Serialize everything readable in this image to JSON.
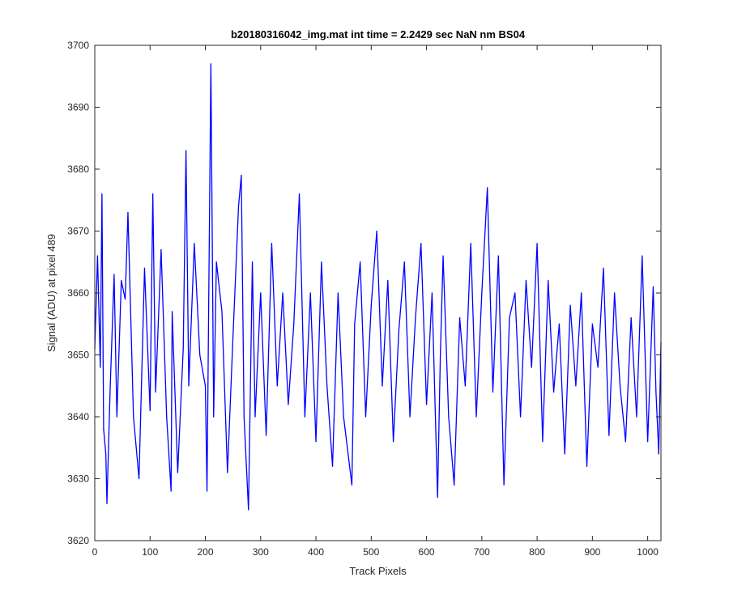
{
  "chart_data": {
    "type": "line",
    "title": "b20180316042_img.mat int time = 2.2429 sec  NaN nm BS04",
    "xlabel": "Track Pixels",
    "ylabel": "Signal (ADU) at pixel 489",
    "xlim": [
      0,
      1024
    ],
    "ylim": [
      3620,
      3700
    ],
    "xticks": [
      0,
      100,
      200,
      300,
      400,
      500,
      600,
      700,
      800,
      900,
      1000
    ],
    "yticks": [
      3620,
      3630,
      3640,
      3650,
      3660,
      3670,
      3680,
      3690,
      3700
    ],
    "xtick_labels": [
      "0",
      "100",
      "200",
      "300",
      "400",
      "500",
      "600",
      "700",
      "800",
      "900",
      "1000"
    ],
    "ytick_labels": [
      "3620",
      "3630",
      "3640",
      "3650",
      "3660",
      "3670",
      "3680",
      "3690",
      "3700"
    ],
    "grid": false,
    "line_color": "#0000ff",
    "series": [
      {
        "x": [
          0,
          5,
          10,
          13,
          16,
          20,
          22,
          28,
          35,
          40,
          48,
          55,
          60,
          70,
          80,
          90,
          100,
          105,
          110,
          120,
          130,
          138,
          140,
          150,
          160,
          165,
          170,
          180,
          190,
          200,
          203,
          210,
          215,
          220,
          230,
          240,
          250,
          260,
          265,
          270,
          278,
          285,
          290,
          300,
          310,
          320,
          330,
          340,
          350,
          360,
          370,
          380,
          390,
          400,
          410,
          420,
          430,
          440,
          450,
          465,
          470,
          480,
          490,
          500,
          510,
          520,
          530,
          540,
          550,
          560,
          570,
          580,
          590,
          600,
          610,
          620,
          625,
          630,
          640,
          650,
          660,
          670,
          680,
          690,
          700,
          710,
          720,
          730,
          740,
          750,
          760,
          770,
          780,
          790,
          800,
          810,
          820,
          830,
          840,
          850,
          860,
          870,
          880,
          890,
          900,
          910,
          920,
          930,
          940,
          950,
          960,
          970,
          980,
          990,
          1000,
          1010,
          1015,
          1020,
          1024
        ],
        "y": [
          3651,
          3666,
          3648,
          3676,
          3638,
          3634,
          3626,
          3645,
          3663,
          3640,
          3662,
          3659,
          3673,
          3640,
          3630,
          3664,
          3641,
          3676,
          3644,
          3667,
          3640,
          3628,
          3657,
          3631,
          3651,
          3683,
          3645,
          3668,
          3650,
          3645,
          3628,
          3697,
          3640,
          3665,
          3657,
          3631,
          3653,
          3674,
          3679,
          3640,
          3625,
          3665,
          3640,
          3660,
          3637,
          3668,
          3645,
          3660,
          3642,
          3655,
          3676,
          3640,
          3660,
          3636,
          3665,
          3645,
          3632,
          3660,
          3640,
          3629,
          3655,
          3665,
          3640,
          3658,
          3670,
          3645,
          3662,
          3636,
          3654,
          3665,
          3640,
          3656,
          3668,
          3642,
          3660,
          3627,
          3650,
          3666,
          3640,
          3629,
          3656,
          3645,
          3668,
          3640,
          3660,
          3677,
          3644,
          3666,
          3629,
          3656,
          3660,
          3640,
          3662,
          3648,
          3668,
          3636,
          3662,
          3644,
          3655,
          3634,
          3658,
          3645,
          3660,
          3632,
          3655,
          3648,
          3664,
          3637,
          3660,
          3645,
          3636,
          3656,
          3640,
          3666,
          3636,
          3661,
          3644,
          3634,
          3652
        ]
      }
    ]
  }
}
